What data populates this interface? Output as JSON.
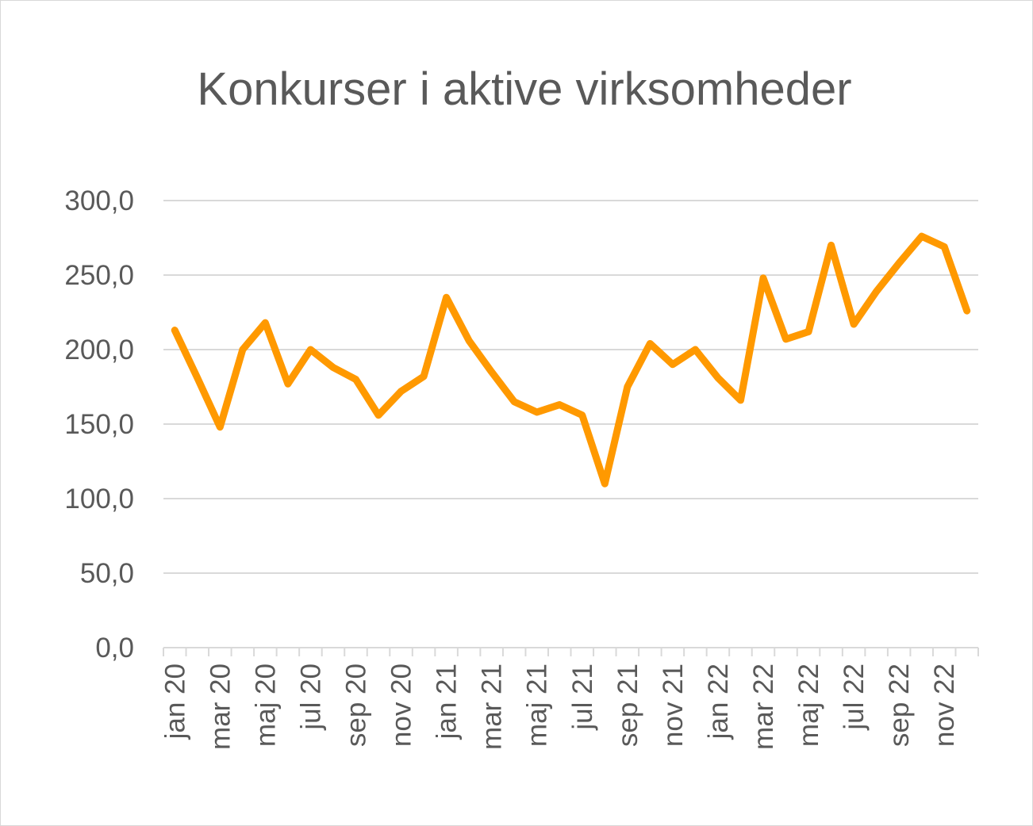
{
  "chart_data": {
    "type": "line",
    "title": "Konkurser i aktive virksomheder",
    "xlabel": "",
    "ylabel": "",
    "ylim": [
      0,
      300
    ],
    "yticks": [
      "0,0",
      "50,0",
      "100,0",
      "150,0",
      "200,0",
      "250,0",
      "300,0"
    ],
    "grid": true,
    "legend": "none",
    "color": "#FF9900",
    "categories": [
      "jan 20",
      "feb 20",
      "mar 20",
      "apr 20",
      "maj 20",
      "jun 20",
      "jul 20",
      "aug 20",
      "sep 20",
      "okt 20",
      "nov 20",
      "dec 20",
      "jan 21",
      "feb 21",
      "mar 21",
      "apr 21",
      "maj 21",
      "jun 21",
      "jul 21",
      "aug 21",
      "sep 21",
      "okt 21",
      "nov 21",
      "dec 21",
      "jan 22",
      "feb 22",
      "mar 22",
      "apr 22",
      "maj 22",
      "jun 22",
      "jul 22",
      "aug 22",
      "sep 22",
      "okt 22",
      "nov 22",
      "dec 22"
    ],
    "xtick_labels": [
      "jan 20",
      "mar 20",
      "maj 20",
      "jul 20",
      "sep 20",
      "nov 20",
      "jan 21",
      "mar 21",
      "maj 21",
      "jul 21",
      "sep 21",
      "nov 21",
      "jan 22",
      "mar 22",
      "maj 22",
      "jul 22",
      "sep 22",
      "nov 22"
    ],
    "values": [
      213,
      181,
      148,
      200,
      218,
      177,
      200,
      188,
      180,
      156,
      172,
      182,
      235,
      206,
      185,
      165,
      158,
      163,
      156,
      110,
      175,
      204,
      190,
      200,
      181,
      166,
      248,
      207,
      212,
      270,
      217,
      239,
      258,
      276,
      269,
      226
    ]
  }
}
